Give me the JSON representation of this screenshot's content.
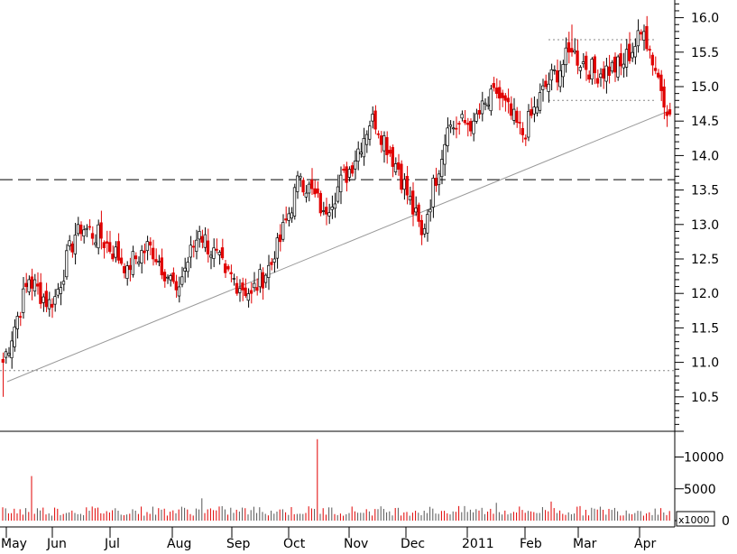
{
  "chart_data": [
    {
      "type": "candlestick",
      "panel": "price",
      "ylim": [
        10.0,
        16.5
      ],
      "yticks": [
        "10.5",
        "11.0",
        "11.5",
        "12.0",
        "12.5",
        "13.0",
        "13.5",
        "14.0",
        "14.5",
        "15.0",
        "15.5",
        "16.0"
      ],
      "x_tick_labels": [
        "May",
        "Jun",
        "Jul",
        "Aug",
        "Sep",
        "Oct",
        "Nov",
        "Dec",
        "2011",
        "Feb",
        "Mar",
        "Apr"
      ],
      "up_color": "#000000",
      "down_color": "#e00000",
      "anchors": [
        {
          "month": "May",
          "close": 11.0,
          "low": 10.5
        },
        {
          "month": "May",
          "close": 12.2
        },
        {
          "month": "Jun",
          "close": 11.8
        },
        {
          "month": "Jun",
          "close": 13.0
        },
        {
          "month": "Jul",
          "close": 12.8
        },
        {
          "month": "Jul",
          "close": 12.4
        },
        {
          "month": "Aug",
          "close": 12.7
        },
        {
          "month": "Aug",
          "close": 12.05
        },
        {
          "month": "Aug",
          "close": 12.9
        },
        {
          "month": "Sep",
          "close": 12.3
        },
        {
          "month": "Sep",
          "close": 12.0
        },
        {
          "month": "Sep",
          "close": 12.5
        },
        {
          "month": "Oct",
          "close": 13.7
        },
        {
          "month": "Oct",
          "close": 13.2
        },
        {
          "month": "Oct",
          "close": 13.8
        },
        {
          "month": "Nov",
          "close": 14.6
        },
        {
          "month": "Nov",
          "close": 13.8
        },
        {
          "month": "Nov",
          "close": 12.85,
          "low": 12.7
        },
        {
          "month": "Dec",
          "close": 14.4
        },
        {
          "month": "Dec",
          "close": 14.5
        },
        {
          "month": "2011",
          "close": 14.9
        },
        {
          "month": "2011",
          "close": 14.3
        },
        {
          "month": "Feb",
          "close": 15.0
        },
        {
          "month": "Feb",
          "close": 15.5,
          "high": 15.9
        },
        {
          "month": "Mar",
          "close": 15.2
        },
        {
          "month": "Mar",
          "close": 15.3
        },
        {
          "month": "Apr",
          "close": 15.8,
          "high": 15.9
        },
        {
          "month": "Apr",
          "close": 14.6
        }
      ],
      "reference_lines": [
        {
          "style": "dashed",
          "value": 13.65
        },
        {
          "style": "dotted",
          "value": 10.88
        },
        {
          "style": "dotted",
          "value": 15.68
        },
        {
          "style": "dotted",
          "value": 14.8
        }
      ],
      "trendline": {
        "from": 10.72,
        "to": 14.65
      }
    },
    {
      "type": "bar",
      "panel": "volume",
      "ylim": [
        0,
        13000
      ],
      "yticks": [
        "0",
        "5000",
        "10000"
      ],
      "unit_label": "x1000",
      "typical_value": 1400,
      "spikes": [
        {
          "month": "May",
          "value": 7000
        },
        {
          "month": "Aug",
          "value": 3500
        },
        {
          "month": "Sep",
          "value": 12800
        },
        {
          "month": "2011",
          "value": 2800
        },
        {
          "month": "Feb",
          "value": 3000
        }
      ]
    }
  ]
}
